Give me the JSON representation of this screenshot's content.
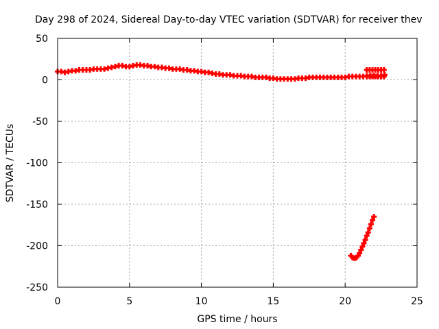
{
  "chart_data": {
    "type": "scatter",
    "title": "Day 298 of 2024, Sidereal Day-to-day VTEC variation (SDTVAR) for receiver thev",
    "xlabel": "GPS time / hours",
    "ylabel": "SDTVAR / TECUs",
    "xlim": [
      0,
      25
    ],
    "ylim": [
      -250,
      50
    ],
    "xticks": [
      0,
      5,
      10,
      15,
      20,
      25
    ],
    "yticks": [
      -250,
      -200,
      -150,
      -100,
      -50,
      0,
      50
    ],
    "xtick_labels": [
      "0",
      "5",
      "10",
      "15",
      "20",
      "25"
    ],
    "ytick_labels": [
      "-250",
      "-200",
      "-150",
      "-100",
      "-50",
      "0",
      "50"
    ],
    "grid": true,
    "marker": "plus",
    "series": [
      {
        "color": "#ff0000",
        "x": [
          0,
          0.25,
          0.5,
          0.75,
          1.0,
          1.25,
          1.5,
          1.75,
          2.0,
          2.25,
          2.5,
          2.75,
          3.0,
          3.25,
          3.5,
          3.75,
          4.0,
          4.25,
          4.5,
          4.75,
          5.0,
          5.25,
          5.5,
          5.75,
          6.0,
          6.25,
          6.5,
          6.75,
          7.0,
          7.25,
          7.5,
          7.75,
          8.0,
          8.25,
          8.5,
          8.75,
          9.0,
          9.25,
          9.5,
          9.75,
          10.0,
          10.25,
          10.5,
          10.75,
          11.0,
          11.25,
          11.5,
          11.75,
          12.0,
          12.25,
          12.5,
          12.75,
          13.0,
          13.25,
          13.5,
          13.75,
          14.0,
          14.25,
          14.5,
          14.75,
          15.0,
          15.25,
          15.5,
          15.75,
          16.0,
          16.25,
          16.5,
          16.75,
          17.0,
          17.25,
          17.5,
          17.75,
          18.0,
          18.25,
          18.5,
          18.75,
          19.0,
          19.25,
          19.5,
          19.75,
          20.0,
          20.25,
          20.5,
          20.75,
          21.0,
          21.25,
          21.5,
          21.75,
          22.0,
          22.25,
          22.5,
          22.75
        ],
        "y": [
          10,
          10,
          9,
          10,
          11,
          11,
          12,
          12,
          12,
          12,
          13,
          13,
          13,
          13,
          14,
          15,
          16,
          17,
          17,
          16,
          16,
          17,
          18,
          18,
          17,
          17,
          16,
          16,
          15,
          15,
          14,
          14,
          13,
          13,
          13,
          12,
          12,
          11,
          11,
          10,
          10,
          9,
          9,
          8,
          7,
          7,
          6,
          6,
          6,
          5,
          5,
          5,
          4,
          4,
          4,
          3,
          3,
          3,
          3,
          2,
          2,
          1,
          1,
          1,
          1,
          1,
          1,
          2,
          2,
          2,
          3,
          3,
          3,
          3,
          3,
          3,
          3,
          3,
          3,
          3,
          3,
          4,
          4,
          4,
          4,
          4,
          5,
          5,
          5,
          5,
          5,
          6
        ]
      },
      {
        "color": "#ff0000",
        "x": [
          20.4,
          20.5,
          20.6,
          20.7,
          20.8,
          20.9,
          21.0,
          21.1,
          21.2,
          21.3,
          21.4,
          21.5,
          21.6,
          21.7,
          21.8,
          21.9,
          22.0
        ],
        "y": [
          -212,
          -214,
          -215,
          -215,
          -214,
          -212,
          -209,
          -205,
          -201,
          -197,
          -193,
          -188,
          -184,
          -179,
          -174,
          -169,
          -165
        ]
      },
      {
        "color": "#ff0000",
        "x": [
          21.5,
          21.7,
          21.9,
          22.1,
          22.3,
          22.5,
          22.7,
          21.5,
          21.7,
          21.9,
          22.1,
          22.3,
          22.5,
          22.7
        ],
        "y": [
          12,
          12,
          12,
          12,
          12,
          12,
          12,
          4,
          4,
          4,
          4,
          4,
          4,
          4
        ]
      }
    ]
  }
}
